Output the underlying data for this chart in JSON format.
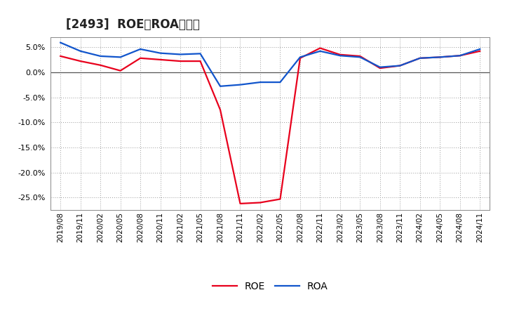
{
  "title": "[2493]  ROE、ROAの推移",
  "roe_data": [
    [
      "2019/08",
      3.2
    ],
    [
      "2019/11",
      2.2
    ],
    [
      "2020/02",
      1.4
    ],
    [
      "2020/05",
      0.3
    ],
    [
      "2020/08",
      2.8
    ],
    [
      "2020/11",
      2.5
    ],
    [
      "2021/02",
      2.2
    ],
    [
      "2021/05",
      2.2
    ],
    [
      "2021/08",
      -7.5
    ],
    [
      "2021/11",
      -26.2
    ],
    [
      "2022/02",
      -26.0
    ],
    [
      "2022/05",
      -25.3
    ],
    [
      "2022/08",
      2.8
    ],
    [
      "2022/11",
      4.8
    ],
    [
      "2023/02",
      3.5
    ],
    [
      "2023/05",
      3.2
    ],
    [
      "2023/08",
      0.8
    ],
    [
      "2023/11",
      1.3
    ],
    [
      "2024/02",
      2.8
    ],
    [
      "2024/05",
      3.0
    ],
    [
      "2024/08",
      3.3
    ],
    [
      "2024/11",
      4.2
    ]
  ],
  "roa_data": [
    [
      "2019/08",
      5.9
    ],
    [
      "2019/11",
      4.2
    ],
    [
      "2020/02",
      3.2
    ],
    [
      "2020/05",
      3.0
    ],
    [
      "2020/08",
      4.6
    ],
    [
      "2020/11",
      3.8
    ],
    [
      "2021/02",
      3.55
    ],
    [
      "2021/05",
      3.7
    ],
    [
      "2021/08",
      -2.8
    ],
    [
      "2021/11",
      -2.5
    ],
    [
      "2022/02",
      -2.0
    ],
    [
      "2022/05",
      -2.0
    ],
    [
      "2022/08",
      3.0
    ],
    [
      "2022/11",
      4.2
    ],
    [
      "2023/02",
      3.3
    ],
    [
      "2023/05",
      3.0
    ],
    [
      "2023/08",
      1.0
    ],
    [
      "2023/11",
      1.3
    ],
    [
      "2024/02",
      2.8
    ],
    [
      "2024/05",
      3.0
    ],
    [
      "2024/08",
      3.3
    ],
    [
      "2024/11",
      4.6
    ]
  ],
  "roe_color": "#e8001c",
  "roa_color": "#1155cc",
  "background_color": "#ffffff",
  "plot_bg_color": "#ffffff",
  "grid_color": "#999999",
  "border_color": "#888888",
  "zero_line_color": "#555555",
  "ylim": [
    -27.5,
    7.0
  ],
  "yticks": [
    5.0,
    0.0,
    -5.0,
    -10.0,
    -15.0,
    -20.0,
    -25.0
  ],
  "title_fontsize": 12,
  "tick_fontsize": 8,
  "legend_fontsize": 10,
  "line_width": 1.6
}
